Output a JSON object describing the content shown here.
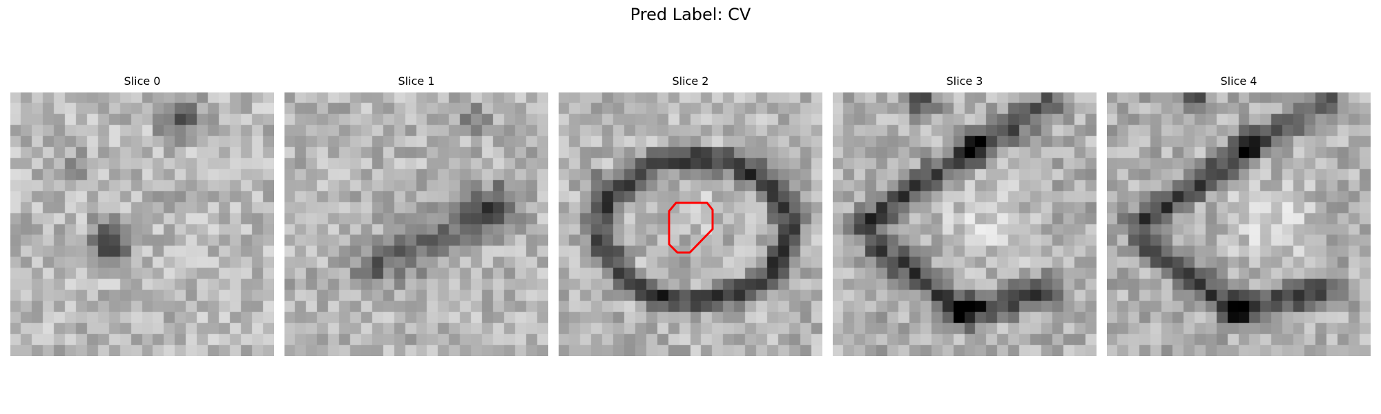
{
  "figure": {
    "title": "Pred Label: CV"
  },
  "panels": [
    {
      "title": "Slice 0",
      "image_description": "noisy grayscale patch with dark blobs",
      "has_overlay": false
    },
    {
      "title": "Slice 1",
      "image_description": "noisy grayscale patch with dark diagonal band",
      "has_overlay": false
    },
    {
      "title": "Slice 2",
      "image_description": "grayscale patch showing dark vesicle ring outline",
      "has_overlay": true,
      "overlay_color": "#ff0000"
    },
    {
      "title": "Slice 3",
      "image_description": "grayscale patch showing large bright region bordered by dark band",
      "has_overlay": false
    },
    {
      "title": "Slice 4",
      "image_description": "grayscale patch showing large bright region bordered by dark band",
      "has_overlay": false
    }
  ]
}
